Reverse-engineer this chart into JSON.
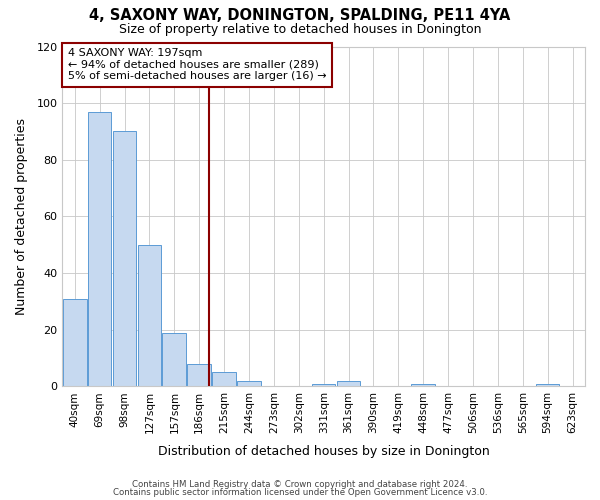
{
  "title": "4, SAXONY WAY, DONINGTON, SPALDING, PE11 4YA",
  "subtitle": "Size of property relative to detached houses in Donington",
  "xlabel": "Distribution of detached houses by size in Donington",
  "ylabel": "Number of detached properties",
  "bin_labels": [
    "40sqm",
    "69sqm",
    "98sqm",
    "127sqm",
    "157sqm",
    "186sqm",
    "215sqm",
    "244sqm",
    "273sqm",
    "302sqm",
    "331sqm",
    "361sqm",
    "390sqm",
    "419sqm",
    "448sqm",
    "477sqm",
    "506sqm",
    "536sqm",
    "565sqm",
    "594sqm",
    "623sqm"
  ],
  "bar_heights": [
    31,
    97,
    90,
    50,
    19,
    8,
    5,
    2,
    0,
    0,
    1,
    2,
    0,
    0,
    1,
    0,
    0,
    0,
    0,
    1,
    0
  ],
  "bar_color": "#c6d9f0",
  "bar_edge_color": "#5b9bd5",
  "vline_color": "#8b0000",
  "annotation_line1": "4 SAXONY WAY: 197sqm",
  "annotation_line2": "← 94% of detached houses are smaller (289)",
  "annotation_line3": "5% of semi-detached houses are larger (16) →",
  "annotation_box_color": "#8b0000",
  "ylim": [
    0,
    120
  ],
  "yticks": [
    0,
    20,
    40,
    60,
    80,
    100,
    120
  ],
  "footer_line1": "Contains HM Land Registry data © Crown copyright and database right 2024.",
  "footer_line2": "Contains public sector information licensed under the Open Government Licence v3.0.",
  "background_color": "#ffffff",
  "grid_color": "#c8c8c8"
}
